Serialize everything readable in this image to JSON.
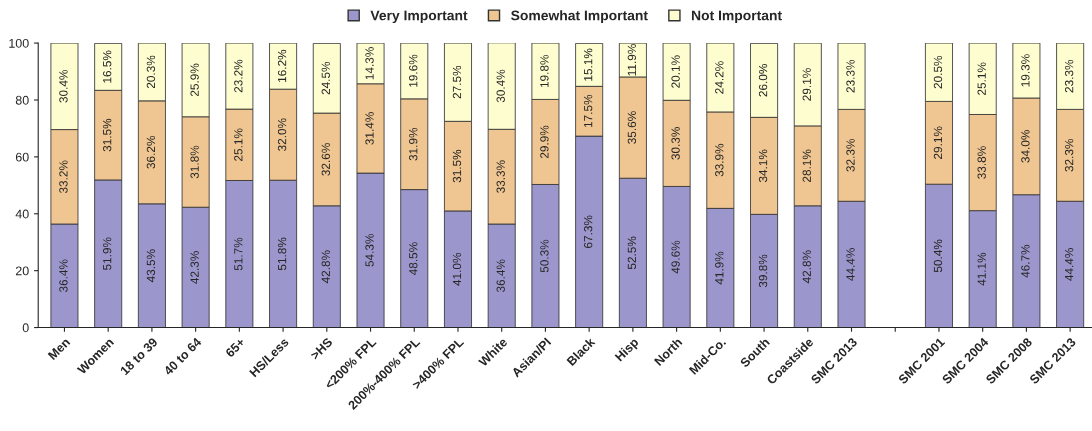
{
  "chart_data": {
    "type": "bar",
    "stacked": true,
    "legend": "top",
    "grid": false,
    "categories": [
      "Men",
      "Women",
      "18 to 39",
      "40 to 64",
      "65+",
      "HS/Less",
      ">HS",
      "<200% FPL",
      "200%-400% FPL",
      ">400% FPL",
      "White",
      "Asian/PI",
      "Black",
      "Hisp",
      "North",
      "Mid-Co.",
      "South",
      "Coastside",
      "SMC 2013",
      null,
      "SMC 2001",
      "SMC 2004",
      "SMC 2008",
      "SMC 2013"
    ],
    "ylim": [
      0,
      100
    ],
    "yticks": [
      0,
      20,
      40,
      60,
      80,
      100
    ],
    "series": [
      {
        "name": "Very Important",
        "color": "#9b97cc",
        "values": [
          36.4,
          51.9,
          43.5,
          42.3,
          51.7,
          51.8,
          42.8,
          54.3,
          48.5,
          41.0,
          36.4,
          50.3,
          67.3,
          52.5,
          49.6,
          41.9,
          39.8,
          42.8,
          44.4,
          null,
          50.4,
          41.1,
          46.7,
          44.4
        ],
        "value_labels": [
          "36.4%",
          "51.9%",
          "43.5%",
          "42.3%",
          "51.7%",
          "51.8%",
          "42.8%",
          "54.3%",
          "48.5%",
          "41.0%",
          "36.4%",
          "50.3%",
          "67.3%",
          "52.5%",
          "49.6%",
          "41.9%",
          "39.8%",
          "42.8%",
          "44.4%",
          null,
          "50.4%",
          "41.1%",
          "46.7%",
          "44.4%"
        ]
      },
      {
        "name": "Somewhat Important",
        "color": "#efc591",
        "values": [
          33.2,
          31.5,
          36.2,
          31.8,
          25.1,
          32.0,
          32.6,
          31.4,
          31.9,
          31.5,
          33.3,
          29.9,
          17.5,
          35.6,
          30.3,
          33.9,
          34.1,
          28.1,
          32.3,
          null,
          29.1,
          33.8,
          34.0,
          32.3
        ],
        "value_labels": [
          "33.2%",
          "31.5%",
          "36.2%",
          "31.8%",
          "25.1%",
          "32.0%",
          "32.6%",
          "31.4%",
          "31.9%",
          "31.5%",
          "33.3%",
          "29.9%",
          "17.5%",
          "35.6%",
          "30.3%",
          "33.9%",
          "34.1%",
          "28.1%",
          "32.3%",
          null,
          "29.1%",
          "33.8%",
          "34.0%",
          "32.3%"
        ]
      },
      {
        "name": "Not Important",
        "color": "#fdfdcf",
        "values": [
          30.4,
          16.5,
          20.3,
          25.9,
          23.2,
          16.2,
          24.5,
          14.3,
          19.6,
          27.5,
          30.4,
          19.8,
          15.1,
          11.9,
          20.1,
          24.2,
          26.0,
          29.1,
          23.3,
          null,
          20.5,
          25.1,
          19.3,
          23.3
        ],
        "value_labels": [
          "30.4%",
          "16.5%",
          "20.3%",
          "25.9%",
          "23.2%",
          "16.2%",
          "24.5%",
          "14.3%",
          "19.6%",
          "27.5%",
          "30.4%",
          "19.8%",
          "15.1%",
          "11.9%",
          "20.1%",
          "24.2%",
          "26.0%",
          "29.1%",
          "23.3%",
          null,
          "20.5%",
          "25.1%",
          "19.3%",
          "23.3%"
        ]
      }
    ]
  }
}
